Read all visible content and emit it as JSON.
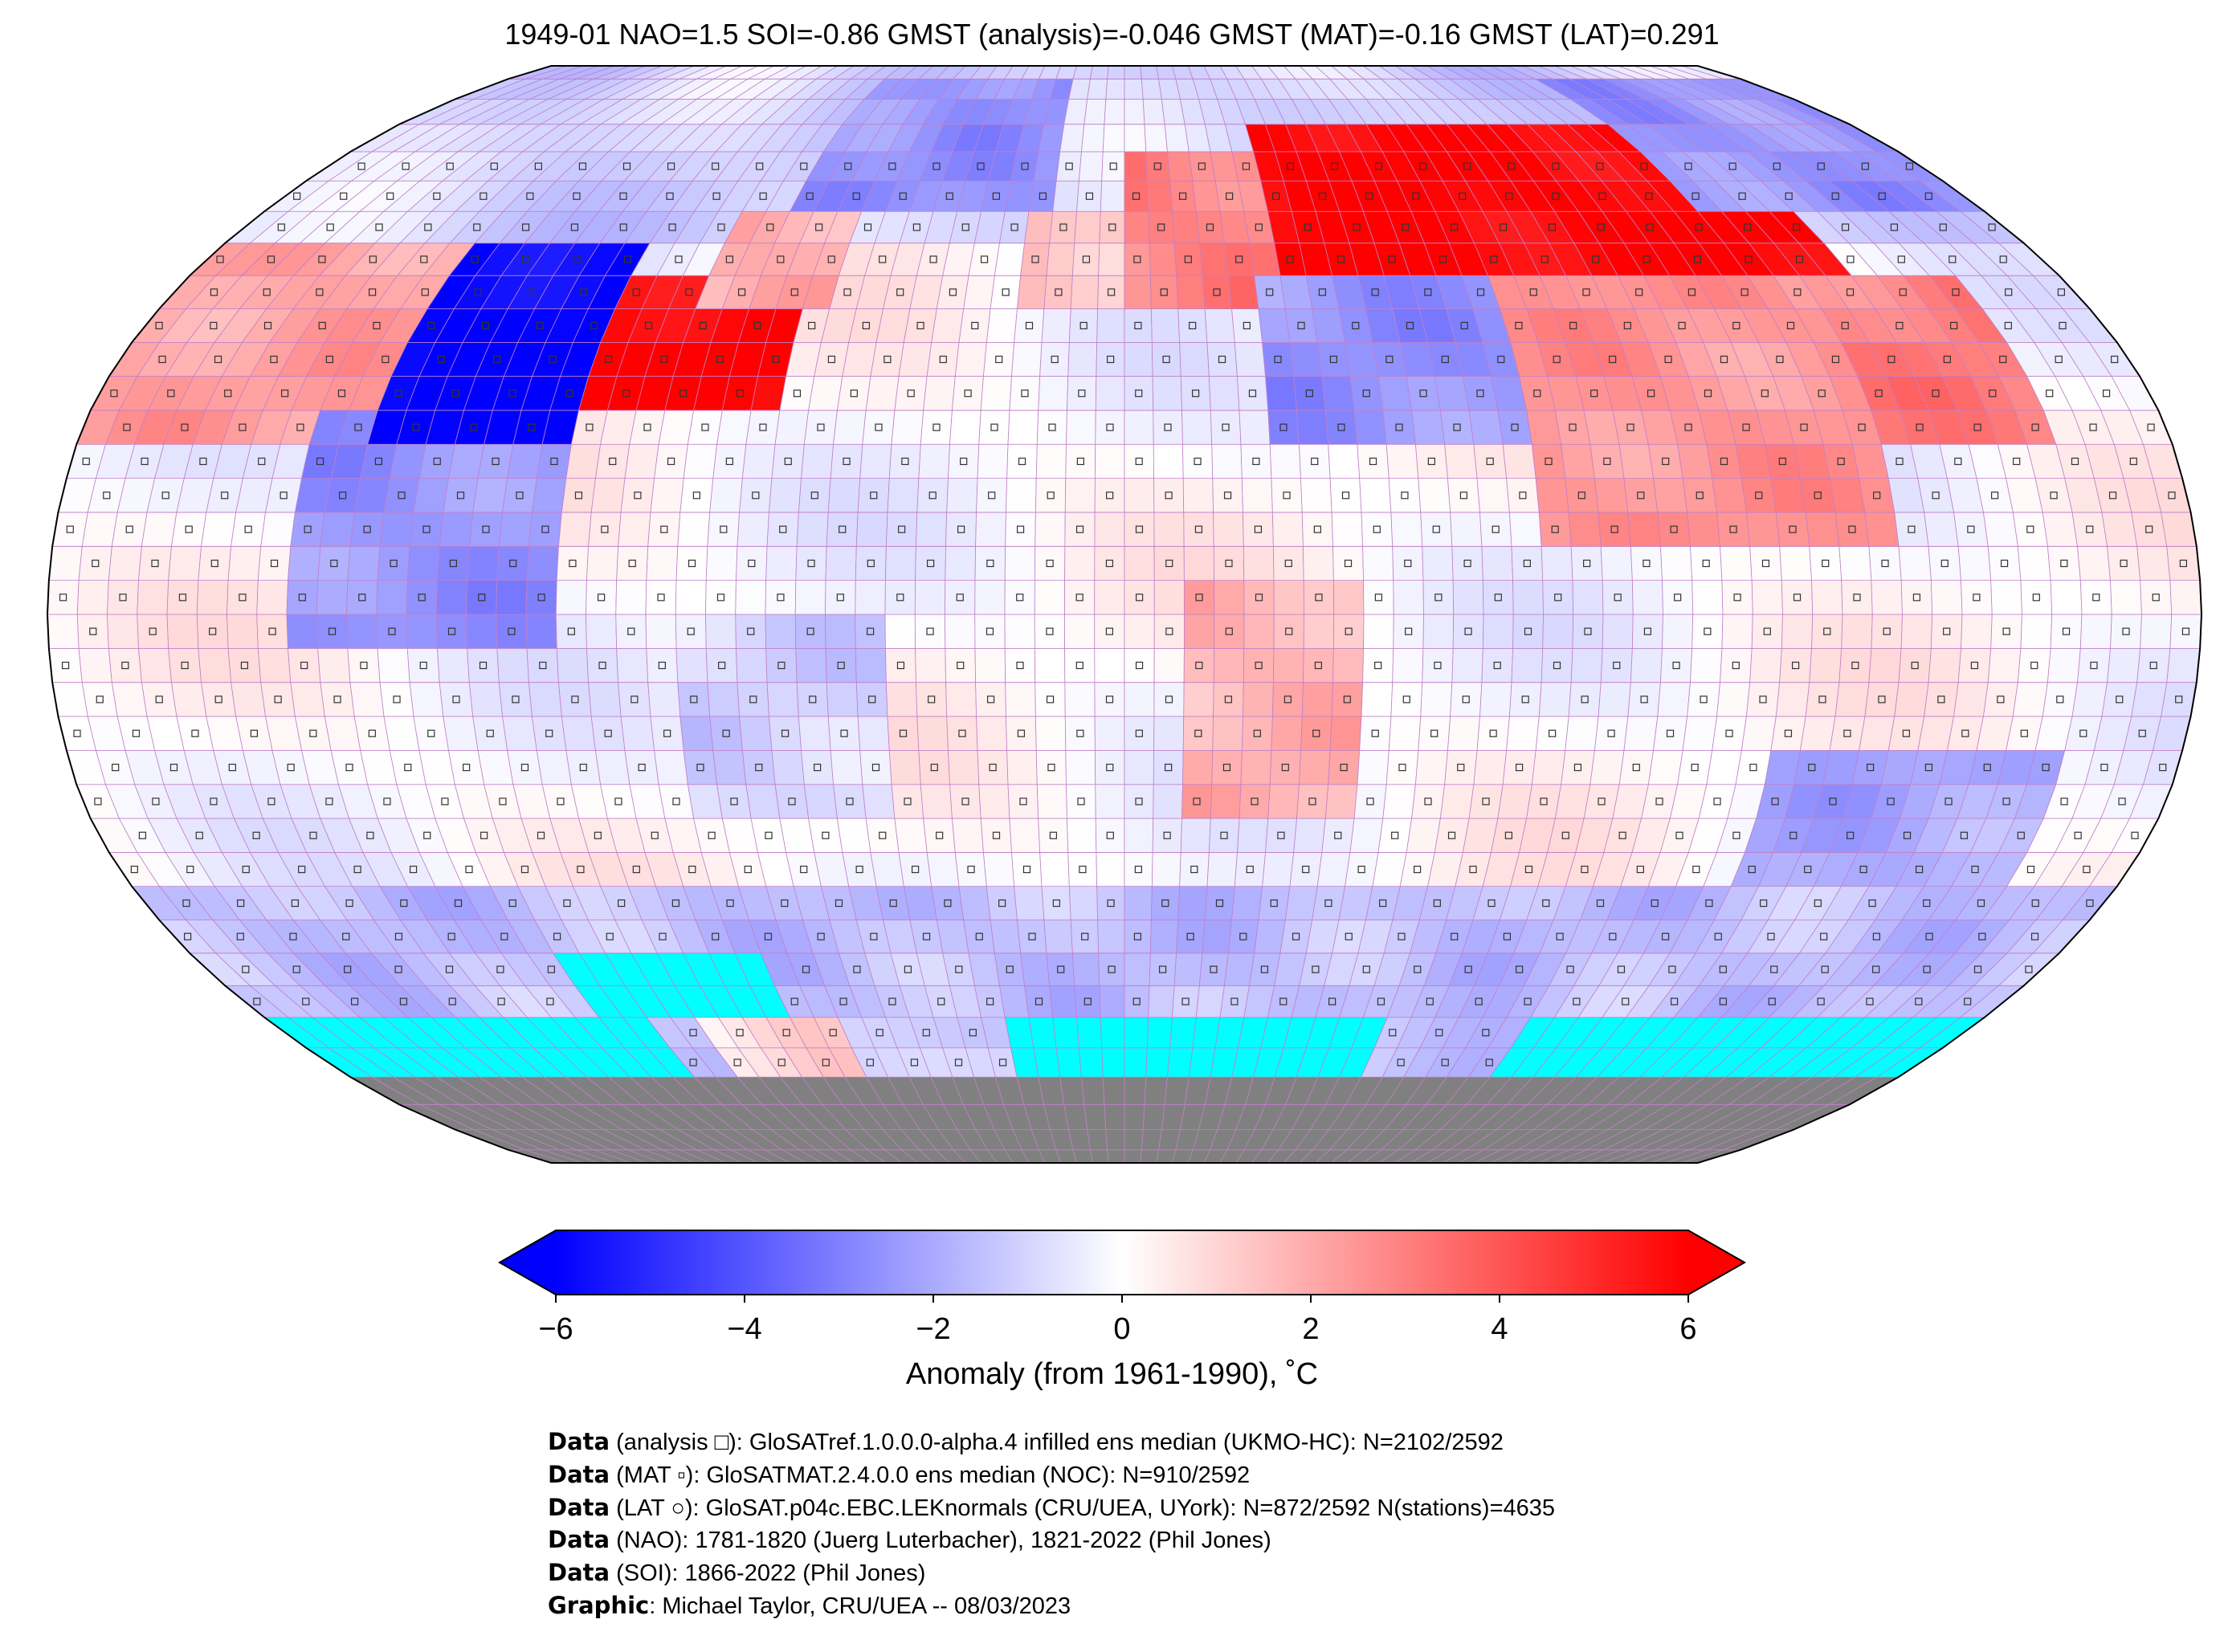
{
  "chart_data": {
    "type": "heatmap",
    "title": "1949-01 NAO=1.5 SOI=-0.86 GMST (analysis)=-0.046 GMST (MAT)=-0.16 GMST (LAT)=0.291",
    "projection": "Robinson",
    "grid_resolution_deg": 5,
    "colormap": "bwr",
    "vmin": -6,
    "vmax": 6,
    "colorbar": {
      "ticks": [
        -6,
        -4,
        -2,
        0,
        2,
        4,
        6
      ],
      "tick_labels": [
        "−6",
        "−4",
        "−2",
        "0",
        "2",
        "4",
        "6"
      ],
      "label": "Anomaly (from 1961-1990), ˚C",
      "extend": "both"
    },
    "colors": {
      "missing": "#00ffff",
      "land_ice": "#808080",
      "grid": "#c080c8"
    },
    "anomaly_regions_lon_lat_value": [
      [
        -180,
        -130,
        25,
        55,
        2.2
      ],
      [
        -140,
        -95,
        -5,
        30,
        -2.5
      ],
      [
        -130,
        -95,
        25,
        55,
        -6
      ],
      [
        -95,
        -60,
        28,
        50,
        6
      ],
      [
        -80,
        -55,
        45,
        60,
        2
      ],
      [
        -70,
        -15,
        58,
        85,
        -2.5
      ],
      [
        -20,
        10,
        45,
        60,
        1.5
      ],
      [
        0,
        30,
        45,
        72,
        3
      ],
      [
        30,
        140,
        50,
        75,
        6
      ],
      [
        120,
        180,
        60,
        85,
        -2.5
      ],
      [
        25,
        90,
        25,
        48,
        -2.5
      ],
      [
        70,
        130,
        12,
        48,
        2.5
      ],
      [
        130,
        160,
        25,
        50,
        3
      ],
      [
        10,
        40,
        -30,
        5,
        1.8
      ],
      [
        -75,
        -40,
        -30,
        0,
        -1
      ],
      [
        110,
        160,
        -45,
        -20,
        -2
      ],
      [
        -180,
        180,
        -62,
        -42,
        -1.5
      ],
      [
        -90,
        -60,
        -70,
        -58,
        0.8
      ]
    ],
    "missing_regions_lon_lat": [
      [
        -180,
        -100,
        -70,
        -60
      ],
      [
        -110,
        -70,
        -62,
        -52
      ],
      [
        -25,
        55,
        -70,
        -60
      ],
      [
        85,
        180,
        -70,
        -60
      ]
    ],
    "antarctica_lat_below": -68
  },
  "footer": [
    {
      "bold": "Data",
      "text": " (analysis □): GloSATref.1.0.0.0-alpha.4 infilled ens median (UKMO-HC): N=2102/2592"
    },
    {
      "bold": "Data",
      "text": " (MAT ▫): GloSATMAT.2.4.0.0 ens median (NOC): N=910/2592"
    },
    {
      "bold": "Data",
      "text": " (LAT ○): GloSAT.p04c.EBC.LEKnormals (CRU/UEA, UYork): N=872/2592 N(stations)=4635"
    },
    {
      "bold": "Data",
      "text": " (NAO): 1781-1820 (Juerg Luterbacher), 1821-2022 (Phil Jones)"
    },
    {
      "bold": "Data",
      "text": " (SOI): 1866-2022 (Phil Jones)"
    },
    {
      "bold": "Graphic",
      "text": ": Michael Taylor, CRU/UEA -- 08/03/2023"
    }
  ]
}
